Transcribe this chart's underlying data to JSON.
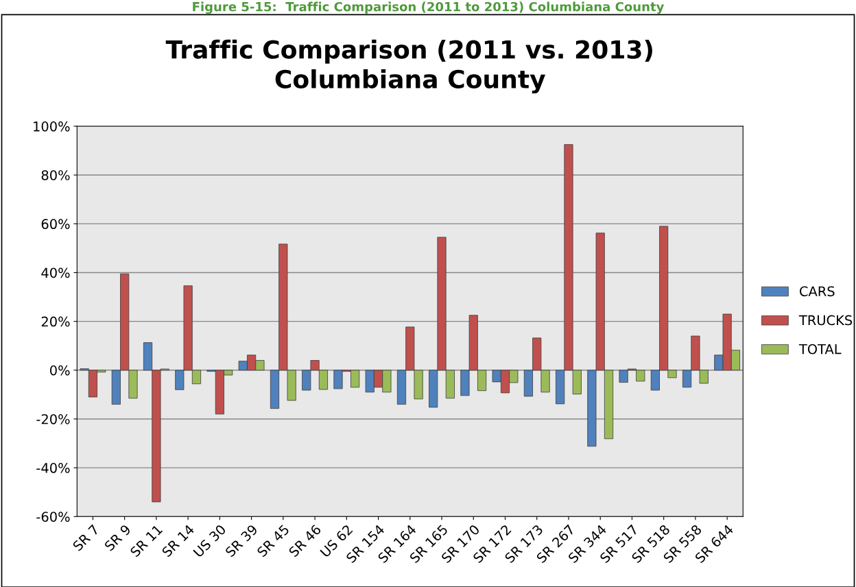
{
  "chart_data": {
    "type": "bar",
    "title": "Traffic Comparison (2011 vs. 2013)\nColumbiana County",
    "annotations": [
      "Figure 5-15:  Traffic Comparison (2011 to 2013) Columbiana County"
    ],
    "categories": [
      "SR 7",
      "SR 9",
      "SR 11",
      "SR 14",
      "US 30",
      "SR 39",
      "SR 45",
      "SR 46",
      "US 62",
      "SR 154",
      "SR 164",
      "SR 165",
      "SR 170",
      "SR 172",
      "SR 173",
      "SR 267",
      "SR 344",
      "SR 517",
      "SR 518",
      "SR 558",
      "SR 644"
    ],
    "series": [
      {
        "name": "CARS",
        "color": "#4f81bd",
        "values": [
          0.6,
          -14,
          11.3,
          -8,
          -0.5,
          3.7,
          -15.7,
          -8.2,
          -7.6,
          -9,
          -14,
          -15.2,
          -10.4,
          -4.8,
          -10.7,
          -13.8,
          -31.2,
          -5,
          -8.2,
          -7,
          6.2
        ]
      },
      {
        "name": "TRUCKS",
        "color": "#c0504d",
        "values": [
          -11,
          39.5,
          -54,
          34.6,
          -18,
          6.2,
          51.7,
          4,
          -0.5,
          -7,
          17.7,
          54.5,
          22.5,
          -9.3,
          13.2,
          92.5,
          56.2,
          0.5,
          59,
          14,
          23
        ]
      },
      {
        "name": "TOTAL",
        "color": "#9bbb59",
        "values": [
          -0.8,
          -11.5,
          0.5,
          -5.6,
          -2,
          4,
          -12.4,
          -7.9,
          -7,
          -9,
          -11.8,
          -11.5,
          -8.4,
          -5.1,
          -9,
          -9.8,
          -28.1,
          -4.5,
          -3.1,
          -5.4,
          8.2
        ]
      }
    ],
    "ylim": [
      -60,
      100
    ],
    "yticks": [
      {
        "value": -60,
        "label": "-60%"
      },
      {
        "value": -40,
        "label": "-40%"
      },
      {
        "value": -20,
        "label": "-20%"
      },
      {
        "value": 0,
        "label": "0%"
      },
      {
        "value": 20,
        "label": "20%"
      },
      {
        "value": 40,
        "label": "40%"
      },
      {
        "value": 60,
        "label": "60%"
      },
      {
        "value": 80,
        "label": "80%"
      },
      {
        "value": 100,
        "label": "100%"
      }
    ],
    "grid": "y",
    "legend": "right"
  }
}
